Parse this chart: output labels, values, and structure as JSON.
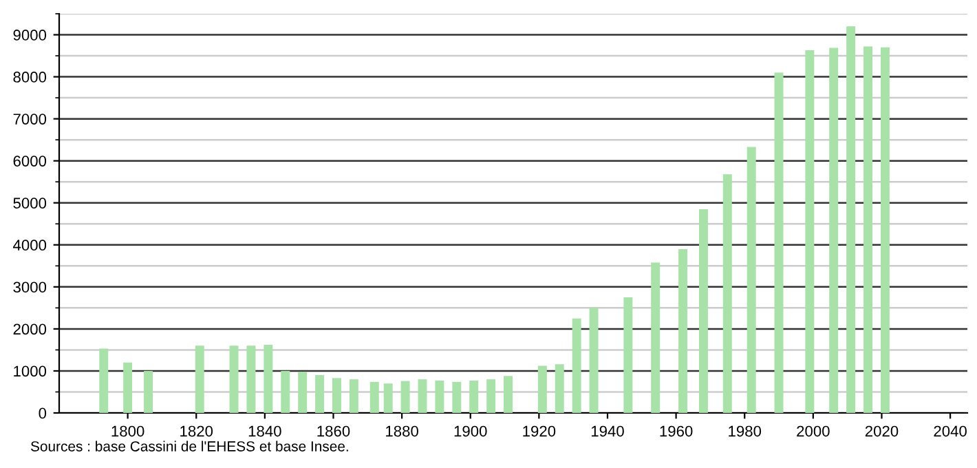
{
  "chart_data": {
    "type": "bar",
    "annotations": [
      "Sources : base Cassini de l'EHESS et base Insee."
    ],
    "x": [
      1793,
      1800,
      1806,
      1821,
      1831,
      1836,
      1841,
      1846,
      1851,
      1856,
      1861,
      1866,
      1872,
      1876,
      1881,
      1886,
      1891,
      1896,
      1901,
      1906,
      1911,
      1921,
      1926,
      1931,
      1936,
      1946,
      1954,
      1962,
      1968,
      1975,
      1982,
      1990,
      1999,
      2006,
      2011,
      2016,
      2021
    ],
    "values": [
      1530,
      1200,
      1000,
      1600,
      1600,
      1600,
      1620,
      1000,
      980,
      900,
      830,
      800,
      740,
      700,
      760,
      800,
      770,
      740,
      770,
      800,
      880,
      1120,
      1160,
      2250,
      2500,
      2750,
      3580,
      3900,
      4850,
      5680,
      6330,
      8100,
      8630,
      8690,
      9200,
      8720,
      8700
    ],
    "color": "#a8e2a8",
    "xlim": [
      1780,
      2045
    ],
    "xticks": [
      1800,
      1820,
      1840,
      1860,
      1880,
      1900,
      1920,
      1940,
      1960,
      1980,
      2000,
      2020,
      2040
    ],
    "ylim": [
      0,
      9500
    ],
    "yticks": [
      0,
      1000,
      2000,
      3000,
      4000,
      5000,
      6000,
      7000,
      8000,
      9000
    ],
    "grid": "y"
  }
}
